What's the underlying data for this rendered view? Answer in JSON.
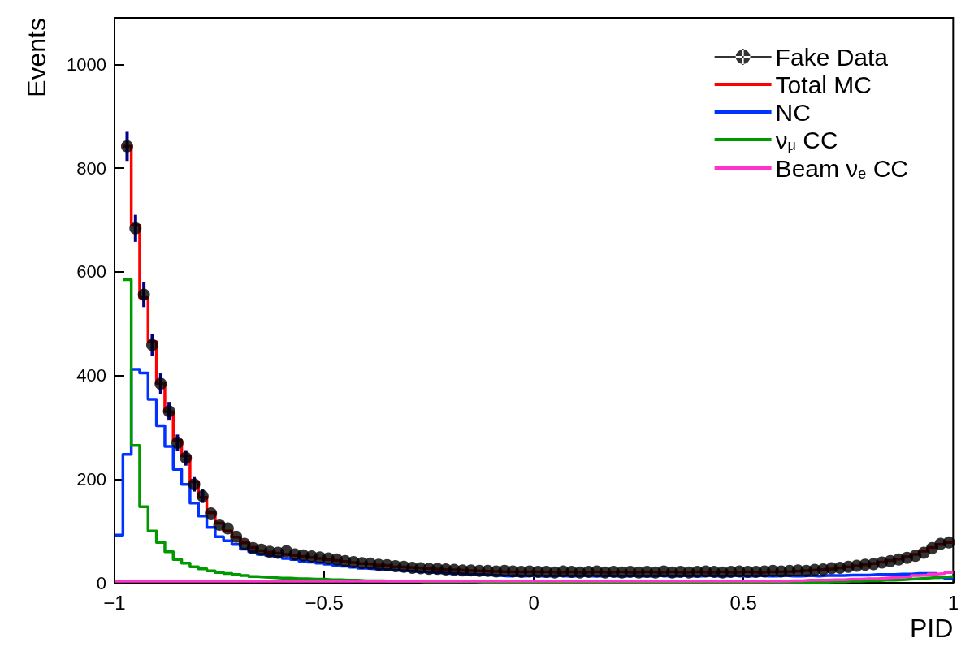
{
  "chart_data": {
    "type": "histogram",
    "xlabel": "PID",
    "ylabel": "Events",
    "bins": [
      -1,
      -0.98,
      -0.96,
      -0.94,
      -0.92,
      -0.9,
      -0.88,
      -0.86,
      -0.84,
      -0.82,
      -0.8,
      -0.78,
      -0.76,
      -0.74,
      -0.72,
      -0.7,
      -0.68,
      -0.66,
      -0.64,
      -0.62,
      -0.6,
      -0.58,
      -0.56,
      -0.54,
      -0.52,
      -0.5,
      -0.48,
      -0.46,
      -0.44,
      -0.42,
      -0.4,
      -0.38,
      -0.36,
      -0.34,
      -0.32,
      -0.3,
      -0.28,
      -0.26,
      -0.24,
      -0.22,
      -0.2,
      -0.18,
      -0.16,
      -0.14,
      -0.12,
      -0.1,
      -0.08,
      -0.06,
      -0.04,
      -0.02,
      0,
      0.02,
      0.04,
      0.06,
      0.08,
      0.1,
      0.12,
      0.14,
      0.16,
      0.18,
      0.2,
      0.22,
      0.24,
      0.26,
      0.28,
      0.3,
      0.32,
      0.34,
      0.36,
      0.38,
      0.4,
      0.42,
      0.44,
      0.46,
      0.48,
      0.5,
      0.52,
      0.54,
      0.56,
      0.58,
      0.6,
      0.62,
      0.64,
      0.66,
      0.68,
      0.7,
      0.72,
      0.74,
      0.76,
      0.78,
      0.8,
      0.82,
      0.84,
      0.86,
      0.88,
      0.9,
      0.92,
      0.94,
      0.96,
      0.98,
      1
    ],
    "xlim": [
      -1,
      1
    ],
    "xticks": [
      {
        "value": -1,
        "label": "−1"
      },
      {
        "value": -0.5,
        "label": "−0.5"
      },
      0,
      0.5,
      1
    ],
    "ylim": [
      0,
      1090
    ],
    "yticks": [
      0,
      200,
      400,
      600,
      800,
      1000
    ],
    "legend": "top right",
    "grid": false,
    "series": [
      {
        "name": "Fake Data",
        "type": "scatter",
        "color": "#000000",
        "marker": "circle",
        "x": [
          -0.97,
          -0.95,
          -0.93,
          -0.91,
          -0.89,
          -0.87,
          -0.85,
          -0.83,
          -0.81,
          -0.79,
          -0.77,
          -0.75,
          -0.73,
          -0.71,
          -0.69,
          -0.67,
          -0.65,
          -0.63,
          -0.61,
          -0.59,
          -0.57,
          -0.55,
          -0.53,
          -0.51,
          -0.49,
          -0.47,
          -0.45,
          -0.43,
          -0.41,
          -0.39,
          -0.37,
          -0.35,
          -0.33,
          -0.31,
          -0.29,
          -0.27,
          -0.25,
          -0.23,
          -0.21,
          -0.19,
          -0.17,
          -0.15,
          -0.13,
          -0.11,
          -0.09,
          -0.07,
          -0.05,
          -0.03,
          -0.01,
          0.01,
          0.03,
          0.05,
          0.07,
          0.09,
          0.11,
          0.13,
          0.15,
          0.17,
          0.19,
          0.21,
          0.23,
          0.25,
          0.27,
          0.29,
          0.31,
          0.33,
          0.35,
          0.37,
          0.39,
          0.41,
          0.43,
          0.45,
          0.47,
          0.49,
          0.51,
          0.53,
          0.55,
          0.57,
          0.59,
          0.61,
          0.63,
          0.65,
          0.67,
          0.69,
          0.71,
          0.73,
          0.75,
          0.77,
          0.79,
          0.81,
          0.83,
          0.85,
          0.87,
          0.89,
          0.91,
          0.93,
          0.95,
          0.97,
          0.99
        ],
        "values": [
          842,
          684,
          556,
          459,
          384,
          331,
          270,
          241,
          190,
          167,
          134,
          112,
          105,
          89,
          75,
          67,
          64,
          60,
          58,
          61,
          55,
          53,
          51,
          49,
          47,
          45,
          42,
          40,
          38,
          37,
          35,
          34,
          32,
          31,
          29,
          28,
          27,
          27,
          26,
          25,
          24,
          24,
          23,
          23,
          22,
          23,
          22,
          21,
          22,
          21,
          21,
          20,
          22,
          21,
          20,
          21,
          22,
          20,
          21,
          20,
          21,
          20,
          21,
          20,
          22,
          20,
          21,
          20,
          21,
          22,
          21,
          20,
          21,
          22,
          21,
          21,
          22,
          23,
          22,
          23,
          24,
          23,
          25,
          26,
          28,
          29,
          31,
          33,
          35,
          36,
          39,
          42,
          45,
          48,
          52,
          58,
          67,
          75,
          78
        ],
        "errors": [
          28,
          26,
          24,
          21,
          20,
          18,
          16,
          15,
          14,
          13,
          null,
          null,
          null,
          null,
          null,
          null,
          null,
          null,
          null,
          null,
          null,
          null,
          null,
          null,
          null,
          null,
          null,
          null,
          null,
          null,
          null,
          null,
          null,
          null,
          null,
          null,
          null,
          null,
          null,
          null,
          null,
          null,
          null,
          null,
          null,
          null,
          null,
          null,
          null,
          null,
          null,
          null,
          null,
          null,
          null,
          null,
          null,
          null,
          null,
          null,
          null,
          null,
          null,
          null,
          null,
          null,
          null,
          null,
          null,
          null,
          null,
          null,
          null,
          null,
          null,
          null,
          null,
          null,
          null,
          null,
          null,
          null,
          null,
          null,
          null,
          null,
          null,
          null,
          null,
          null,
          null,
          null,
          null,
          null,
          null,
          null,
          null,
          null,
          null
        ]
      },
      {
        "name": "Total MC",
        "color": "#ff0000",
        "bins": [
          -0.98,
          -0.96,
          -0.94,
          -0.92,
          -0.9,
          -0.88,
          -0.86,
          -0.84,
          -0.82,
          -0.8,
          -0.78,
          -0.76,
          -0.74,
          -0.72,
          -0.7,
          -0.68,
          -0.66,
          -0.64,
          -0.62,
          -0.6,
          -0.58,
          -0.56,
          -0.54,
          -0.52,
          -0.5,
          -0.48,
          -0.46,
          -0.44,
          -0.42,
          -0.4,
          -0.38,
          -0.36,
          -0.34,
          -0.32,
          -0.3,
          -0.28,
          -0.26,
          -0.24,
          -0.22,
          -0.2,
          -0.18,
          -0.16,
          -0.14,
          -0.12,
          -0.1,
          -0.08,
          -0.06,
          -0.04,
          -0.02,
          0,
          0.02,
          0.04,
          0.06,
          0.08,
          0.1,
          0.12,
          0.14,
          0.16,
          0.18,
          0.2,
          0.22,
          0.24,
          0.26,
          0.28,
          0.3,
          0.32,
          0.34,
          0.36,
          0.38,
          0.4,
          0.42,
          0.44,
          0.46,
          0.48,
          0.5,
          0.52,
          0.54,
          0.56,
          0.58,
          0.6,
          0.62,
          0.64,
          0.66,
          0.68,
          0.7,
          0.72,
          0.74,
          0.76,
          0.78,
          0.8,
          0.82,
          0.84,
          0.86,
          0.88,
          0.9,
          0.92,
          0.94,
          0.96,
          0.98,
          1
        ],
        "values": [
          842,
          690,
          550,
          465,
          385,
          330,
          275,
          245,
          195,
          165,
          135,
          115,
          100,
          88,
          77,
          68,
          62,
          59,
          57,
          55,
          53,
          51,
          49,
          47,
          45,
          43,
          41,
          39,
          37,
          36,
          34,
          33,
          31,
          30,
          29,
          28,
          27,
          26,
          25,
          25,
          24,
          23,
          23,
          22,
          22,
          21,
          21,
          21,
          21,
          21,
          21,
          20,
          21,
          21,
          20,
          21,
          21,
          20,
          21,
          21,
          20,
          21,
          21,
          20,
          21,
          21,
          20,
          21,
          21,
          20,
          21,
          21,
          20,
          21,
          21,
          20,
          21,
          21,
          21,
          22,
          23,
          24,
          25,
          26,
          27,
          29,
          31,
          33,
          35,
          37,
          40,
          43,
          46,
          50,
          55,
          61,
          68,
          74,
          78
        ]
      },
      {
        "name": "NC",
        "color": "#0033ff",
        "values": [
          92,
          248,
          412,
          405,
          354,
          303,
          263,
          219,
          190,
          154,
          129,
          107,
          89,
          81,
          74,
          65,
          60,
          55,
          53,
          50,
          47,
          45,
          42,
          40,
          38,
          36,
          34,
          32,
          30,
          28,
          27,
          26,
          25,
          24,
          23,
          22,
          21,
          20,
          19,
          18,
          18,
          17,
          16,
          16,
          15,
          14,
          13,
          14,
          13,
          14,
          13,
          13,
          14,
          13,
          13,
          14,
          13,
          13,
          14,
          13,
          13,
          14,
          13,
          13,
          14,
          13,
          13,
          14,
          13,
          13,
          14,
          13,
          13,
          14,
          13,
          13,
          14,
          13,
          13,
          14,
          13,
          13,
          14,
          13,
          14,
          14,
          14,
          15,
          15,
          15,
          16,
          16,
          16,
          17,
          17,
          18,
          18,
          18,
          10,
          8
        ]
      },
      {
        "name": "ν$_{μ}$ CC",
        "color": "#009900",
        "bins": [
          -0.98,
          -0.96,
          -0.94,
          -0.92,
          -0.9,
          -0.88,
          -0.86,
          -0.84,
          -0.82,
          -0.8,
          -0.78,
          -0.76,
          -0.74,
          -0.72,
          -0.7,
          -0.68,
          -0.66,
          -0.64,
          -0.62,
          -0.6,
          -0.58,
          -0.56,
          -0.54,
          -0.52,
          -0.5,
          -0.48,
          -0.46,
          -0.44,
          -0.42,
          -0.4,
          -0.38,
          -0.36,
          -0.34,
          -0.32,
          -0.3,
          -0.28,
          -0.26,
          -0.24,
          -0.22,
          -0.2,
          -0.18,
          -0.16,
          -0.14,
          -0.12,
          -0.1,
          -0.08,
          -0.06,
          -0.04,
          -0.02,
          0,
          0.02,
          0.04,
          0.06,
          0.08,
          0.1,
          0.12,
          0.14,
          0.16,
          0.18,
          0.2,
          0.22,
          0.24,
          0.26,
          0.28,
          0.3,
          0.32,
          0.34,
          0.36,
          0.38,
          0.4,
          0.42,
          0.44,
          0.46,
          0.48,
          0.5,
          0.52,
          0.54,
          0.56,
          0.58,
          0.6,
          0.62,
          0.64,
          0.66,
          0.68,
          0.7,
          0.72,
          0.74,
          0.76,
          0.78,
          0.8,
          0.82,
          0.84,
          0.86,
          0.88,
          0.9,
          0.92,
          0.94,
          0.96,
          0.98,
          1
        ],
        "values": [
          585,
          265,
          147,
          100,
          78,
          60,
          45,
          38,
          31,
          27,
          23,
          20,
          18,
          16,
          14,
          12,
          11,
          10,
          9,
          9,
          8,
          8,
          7,
          7,
          6,
          6,
          5,
          5,
          4,
          4,
          4,
          3,
          3,
          3,
          3,
          2,
          2,
          2,
          2,
          2,
          2,
          2,
          1,
          1,
          1,
          1,
          1,
          1,
          1,
          1,
          1,
          1,
          1,
          1,
          1,
          1,
          1,
          1,
          1,
          1,
          1,
          1,
          1,
          1,
          1,
          1,
          1,
          1,
          1,
          1,
          1,
          1,
          1,
          1,
          1,
          1,
          1,
          1,
          1,
          1,
          1,
          1,
          1,
          1,
          2,
          2,
          3,
          3,
          4,
          4,
          5,
          5,
          6,
          7,
          8,
          9,
          10,
          11,
          12
        ]
      },
      {
        "name": "Beam ν$_{e}$ CC",
        "color": "#ff33cc",
        "values": [
          3,
          3,
          3,
          3,
          3,
          3,
          3,
          3,
          3,
          3,
          3,
          3,
          3,
          3,
          3,
          3,
          3,
          3,
          3,
          3,
          3,
          3,
          3,
          3,
          3,
          3,
          3,
          3,
          3,
          3,
          3,
          3,
          3,
          3,
          3,
          3,
          3,
          3,
          3,
          3,
          3,
          3,
          3,
          3,
          3,
          3,
          3,
          3,
          3,
          3,
          3,
          3,
          3,
          3,
          3,
          3,
          3,
          3,
          3,
          3,
          3,
          3,
          3,
          3,
          3,
          3,
          3,
          3,
          3,
          3,
          3,
          3,
          3,
          3,
          3,
          3,
          3,
          3,
          3,
          3,
          4,
          4,
          5,
          5,
          5,
          6,
          6,
          7,
          7,
          8,
          8,
          9,
          10,
          11,
          12,
          14,
          15,
          17,
          18,
          20
        ]
      }
    ]
  }
}
